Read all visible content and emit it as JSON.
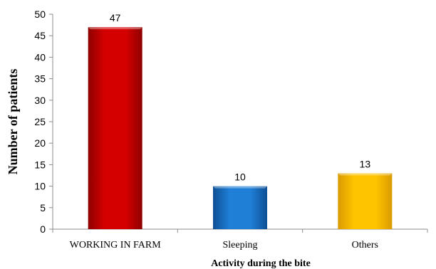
{
  "chart_data": {
    "type": "bar",
    "title": "",
    "xlabel": "Activity during  the bite",
    "ylabel": "Number of patients",
    "categories": [
      "WORKING IN FARM",
      "Sleeping",
      "Others"
    ],
    "values": [
      47,
      10,
      13
    ],
    "data_labels": [
      "47",
      "10",
      "13"
    ],
    "ylim": [
      0,
      50
    ],
    "yticks": [
      0,
      5,
      10,
      15,
      20,
      25,
      30,
      35,
      40,
      45,
      50
    ],
    "grid": false,
    "legend": "none",
    "colors": [
      "#cc0000",
      "#1a75cc",
      "#ffc000"
    ]
  }
}
